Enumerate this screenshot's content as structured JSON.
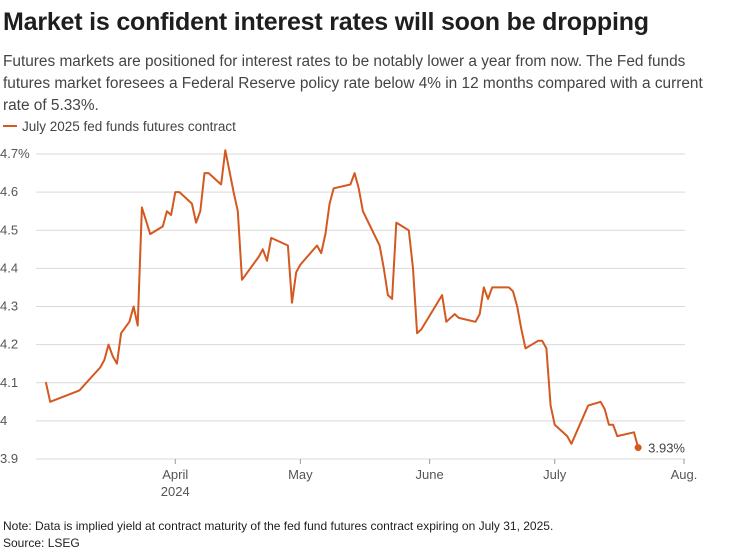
{
  "title": "Market is confident interest rates will soon be dropping",
  "subtitle": "Futures markets are positioned for interest rates to be notably lower a year from now. The Fed funds futures market foresees a Federal Reserve policy rate below 4% in 12 months compared with a current rate of 5.33%.",
  "legend_label": "July 2025 fed funds futures contract",
  "note": "Note: Data is implied yield at contract maturity of the fed fund futures contract expiring on July 31, 2025.",
  "source": "Source: LSEG",
  "colors": {
    "series": "#d4581f",
    "grid": "#d9d9d9",
    "axis_text": "#555555"
  },
  "chart_data": {
    "type": "line",
    "title": "Market is confident interest rates will soon be dropping",
    "xlabel": "",
    "ylabel": "",
    "ylim": [
      3.9,
      4.7
    ],
    "yticks": [
      {
        "value": 4.7,
        "label": "4.7%"
      },
      {
        "value": 4.6,
        "label": "4.6"
      },
      {
        "value": 4.5,
        "label": "4.5"
      },
      {
        "value": 4.4,
        "label": "4.4"
      },
      {
        "value": 4.3,
        "label": "4.3"
      },
      {
        "value": 4.2,
        "label": "4.2"
      },
      {
        "value": 4.1,
        "label": "4.1"
      },
      {
        "value": 4.0,
        "label": "4"
      },
      {
        "value": 3.9,
        "label": "3.9"
      }
    ],
    "xlim": [
      "2024-03-01",
      "2024-08-01"
    ],
    "xticks": [
      {
        "date": "2024-04-01",
        "label": "April",
        "sublabel": "2024"
      },
      {
        "date": "2024-05-01",
        "label": "May"
      },
      {
        "date": "2024-06-01",
        "label": "June"
      },
      {
        "date": "2024-07-01",
        "label": "July"
      },
      {
        "date": "2024-08-01",
        "label": "Aug."
      }
    ],
    "grid": true,
    "series": [
      {
        "name": "July 2025 fed funds futures contract",
        "end_label": "3.93%",
        "points": [
          [
            "2024-03-01",
            4.1
          ],
          [
            "2024-03-02",
            4.05
          ],
          [
            "2024-03-09",
            4.08
          ],
          [
            "2024-03-14",
            4.14
          ],
          [
            "2024-03-15",
            4.16
          ],
          [
            "2024-03-16",
            4.2
          ],
          [
            "2024-03-17",
            4.17
          ],
          [
            "2024-03-18",
            4.15
          ],
          [
            "2024-03-19",
            4.23
          ],
          [
            "2024-03-21",
            4.26
          ],
          [
            "2024-03-22",
            4.3
          ],
          [
            "2024-03-23",
            4.25
          ],
          [
            "2024-03-24",
            4.56
          ],
          [
            "2024-03-26",
            4.49
          ],
          [
            "2024-03-29",
            4.51
          ],
          [
            "2024-03-30",
            4.55
          ],
          [
            "2024-03-31",
            4.54
          ],
          [
            "2024-04-01",
            4.6
          ],
          [
            "2024-04-02",
            4.6
          ],
          [
            "2024-04-05",
            4.57
          ],
          [
            "2024-04-06",
            4.52
          ],
          [
            "2024-04-07",
            4.55
          ],
          [
            "2024-04-08",
            4.65
          ],
          [
            "2024-04-09",
            4.65
          ],
          [
            "2024-04-12",
            4.62
          ],
          [
            "2024-04-13",
            4.71
          ],
          [
            "2024-04-15",
            4.6
          ],
          [
            "2024-04-16",
            4.55
          ],
          [
            "2024-04-17",
            4.37
          ],
          [
            "2024-04-21",
            4.43
          ],
          [
            "2024-04-22",
            4.45
          ],
          [
            "2024-04-23",
            4.42
          ],
          [
            "2024-04-24",
            4.48
          ],
          [
            "2024-04-28",
            4.46
          ],
          [
            "2024-04-29",
            4.31
          ],
          [
            "2024-04-30",
            4.39
          ],
          [
            "2024-05-01",
            4.41
          ],
          [
            "2024-05-05",
            4.46
          ],
          [
            "2024-05-06",
            4.44
          ],
          [
            "2024-05-07",
            4.49
          ],
          [
            "2024-05-08",
            4.57
          ],
          [
            "2024-05-09",
            4.61
          ],
          [
            "2024-05-13",
            4.62
          ],
          [
            "2024-05-14",
            4.65
          ],
          [
            "2024-05-15",
            4.61
          ],
          [
            "2024-05-16",
            4.55
          ],
          [
            "2024-05-20",
            4.46
          ],
          [
            "2024-05-21",
            4.4
          ],
          [
            "2024-05-22",
            4.33
          ],
          [
            "2024-05-23",
            4.32
          ],
          [
            "2024-05-24",
            4.52
          ],
          [
            "2024-05-27",
            4.5
          ],
          [
            "2024-05-28",
            4.4
          ],
          [
            "2024-05-29",
            4.23
          ],
          [
            "2024-05-30",
            4.24
          ],
          [
            "2024-06-04",
            4.33
          ],
          [
            "2024-06-05",
            4.26
          ],
          [
            "2024-06-07",
            4.28
          ],
          [
            "2024-06-08",
            4.27
          ],
          [
            "2024-06-12",
            4.26
          ],
          [
            "2024-06-13",
            4.28
          ],
          [
            "2024-06-14",
            4.35
          ],
          [
            "2024-06-15",
            4.32
          ],
          [
            "2024-06-16",
            4.35
          ],
          [
            "2024-06-20",
            4.35
          ],
          [
            "2024-06-21",
            4.34
          ],
          [
            "2024-06-22",
            4.3
          ],
          [
            "2024-06-23",
            4.24
          ],
          [
            "2024-06-24",
            4.19
          ],
          [
            "2024-06-27",
            4.21
          ],
          [
            "2024-06-28",
            4.21
          ],
          [
            "2024-06-29",
            4.19
          ],
          [
            "2024-06-30",
            4.04
          ],
          [
            "2024-07-01",
            3.99
          ],
          [
            "2024-07-04",
            3.96
          ],
          [
            "2024-07-05",
            3.94
          ],
          [
            "2024-07-07",
            3.99
          ],
          [
            "2024-07-09",
            4.04
          ],
          [
            "2024-07-12",
            4.05
          ],
          [
            "2024-07-13",
            4.03
          ],
          [
            "2024-07-14",
            3.99
          ],
          [
            "2024-07-15",
            3.99
          ],
          [
            "2024-07-16",
            3.96
          ],
          [
            "2024-07-20",
            3.97
          ],
          [
            "2024-07-21",
            3.93
          ]
        ]
      }
    ]
  }
}
